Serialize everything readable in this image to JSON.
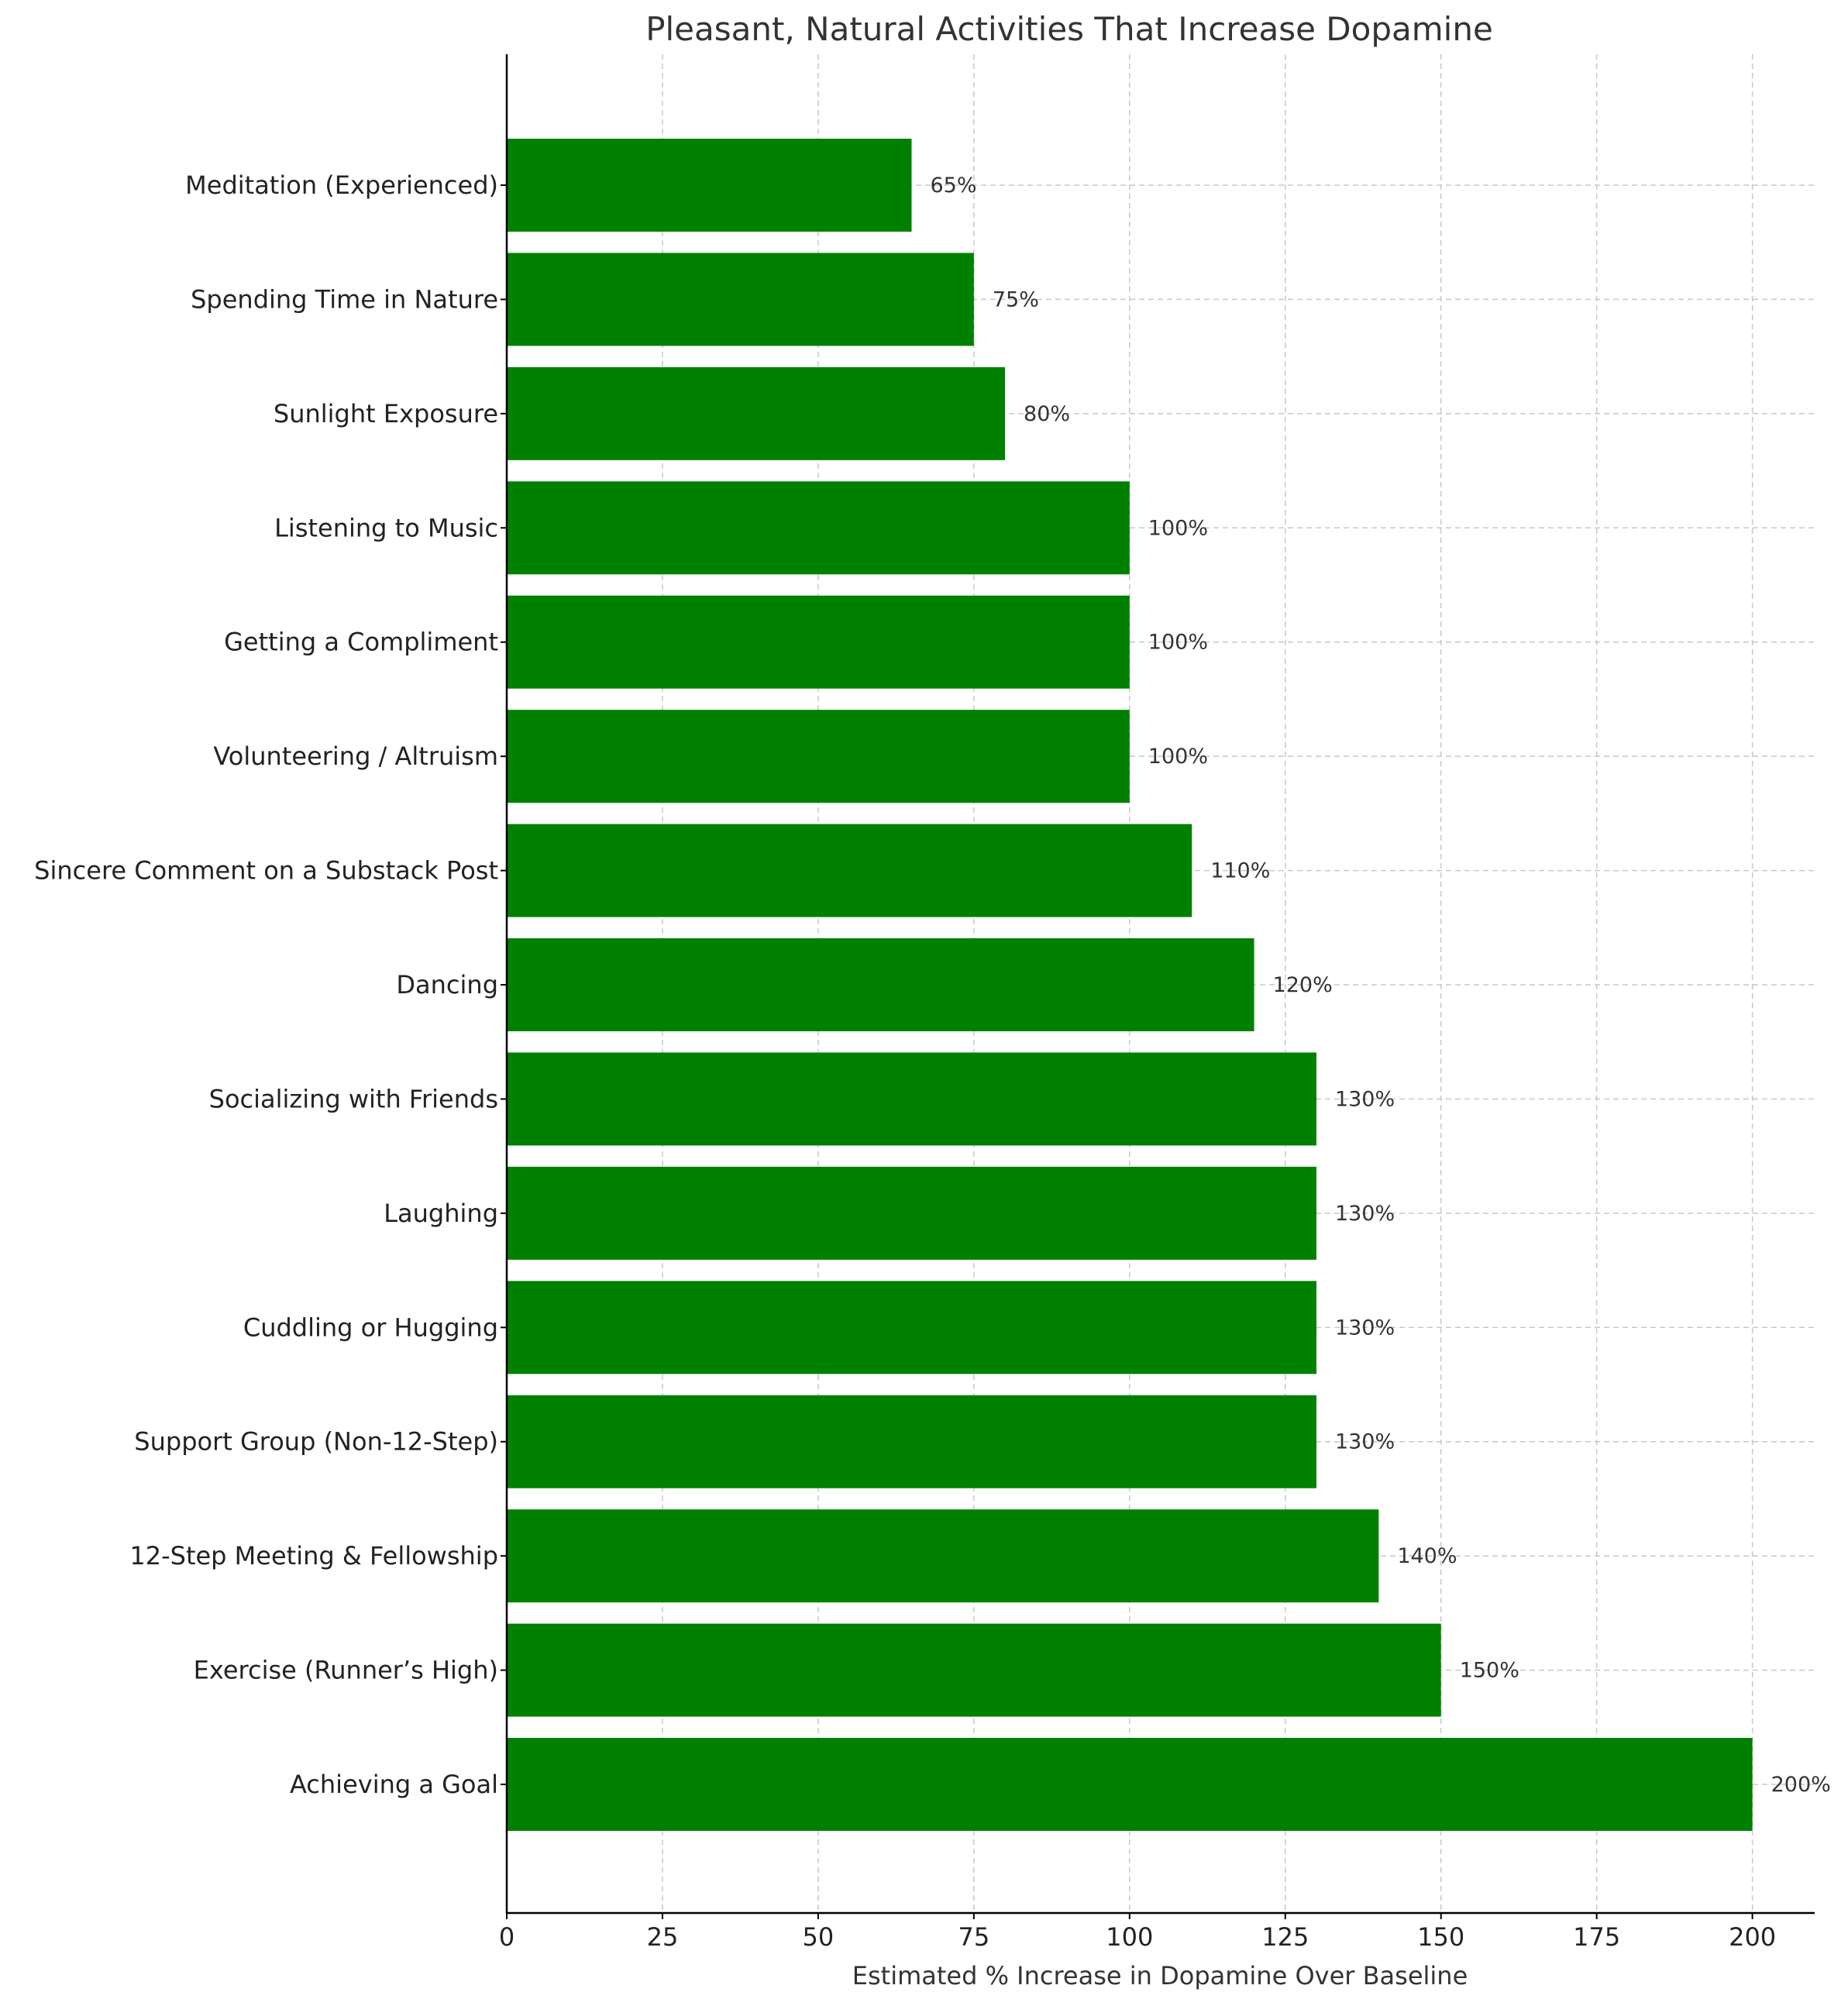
{
  "chart_data": {
    "type": "bar",
    "orientation": "horizontal",
    "title": "Pleasant, Natural Activities That Increase Dopamine",
    "xlabel": "Estimated % Increase in Dopamine Over Baseline",
    "ylabel": "",
    "xlim": [
      0,
      210
    ],
    "xticks": [
      0,
      25,
      50,
      75,
      100,
      125,
      150,
      175,
      200
    ],
    "grid": true,
    "bar_color": "#008000",
    "categories": [
      "Meditation (Experienced)",
      "Spending Time in Nature",
      "Sunlight Exposure",
      "Listening to Music",
      "Getting a Compliment",
      "Volunteering / Altruism",
      "Sincere Comment on a Substack Post",
      "Dancing",
      "Socializing with Friends",
      "Laughing",
      "Cuddling or Hugging",
      "Support Group (Non-12-Step)",
      "12-Step Meeting & Fellowship",
      "Exercise (Runner’s High)",
      "Achieving a Goal"
    ],
    "values": [
      65,
      75,
      80,
      100,
      100,
      100,
      110,
      120,
      130,
      130,
      130,
      130,
      140,
      150,
      200
    ],
    "value_labels": [
      "65%",
      "75%",
      "80%",
      "100%",
      "100%",
      "100%",
      "110%",
      "120%",
      "130%",
      "130%",
      "130%",
      "130%",
      "140%",
      "150%",
      "200%"
    ]
  }
}
